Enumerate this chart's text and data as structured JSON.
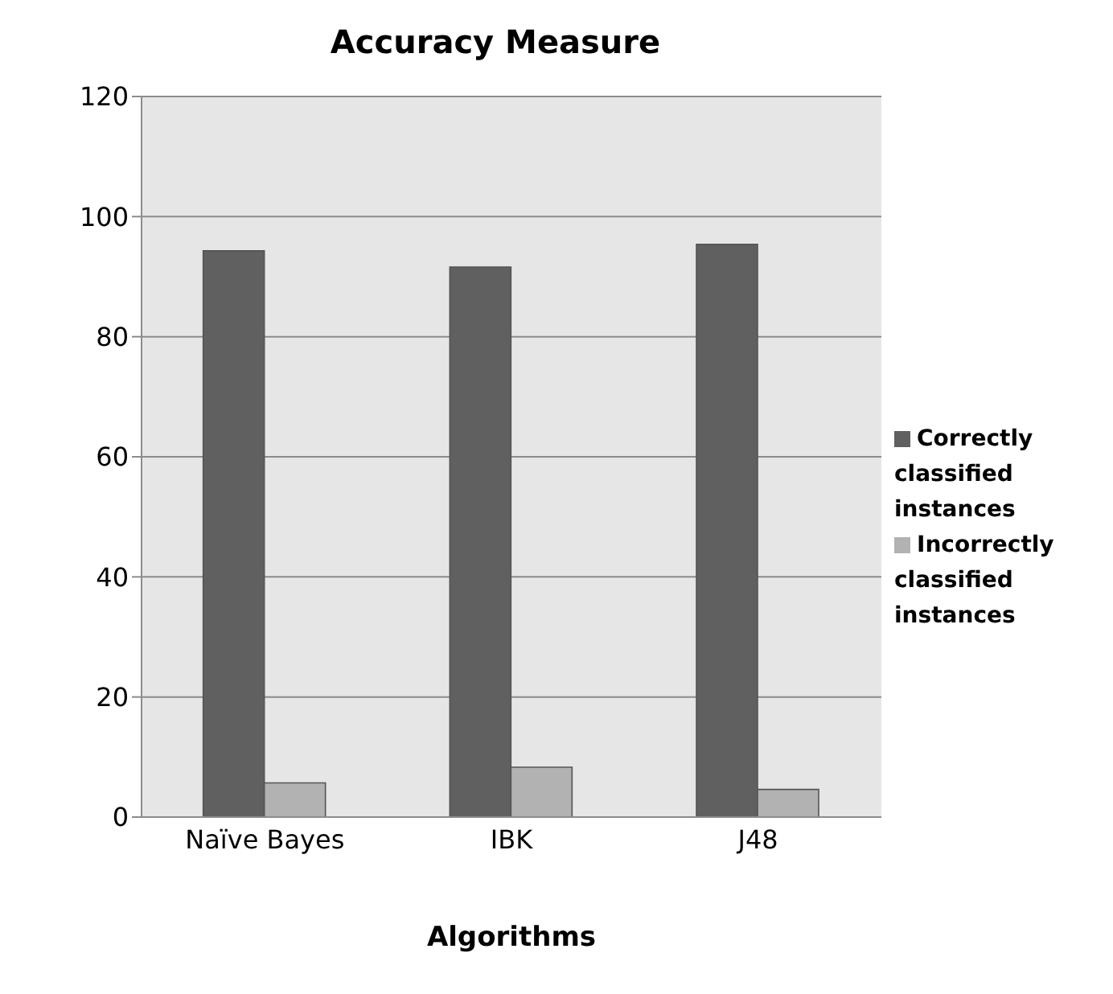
{
  "chart_data": {
    "type": "bar",
    "title": "Accuracy Measure",
    "xlabel": "Algorithms",
    "categories": [
      "Naïve Bayes",
      "IBK",
      "J48"
    ],
    "series": [
      {
        "name": "Correctly classified instances",
        "color": "#606060",
        "values": [
          94.3,
          91.6,
          95.4
        ]
      },
      {
        "name": "Incorrectly classified instances",
        "color": "#b2b2b2",
        "values": [
          5.7,
          8.3,
          4.6
        ]
      }
    ],
    "ylim": [
      0,
      120
    ],
    "yticks": [
      0,
      20,
      40,
      60,
      80,
      100,
      120
    ],
    "grid": "y",
    "legend": "right"
  }
}
